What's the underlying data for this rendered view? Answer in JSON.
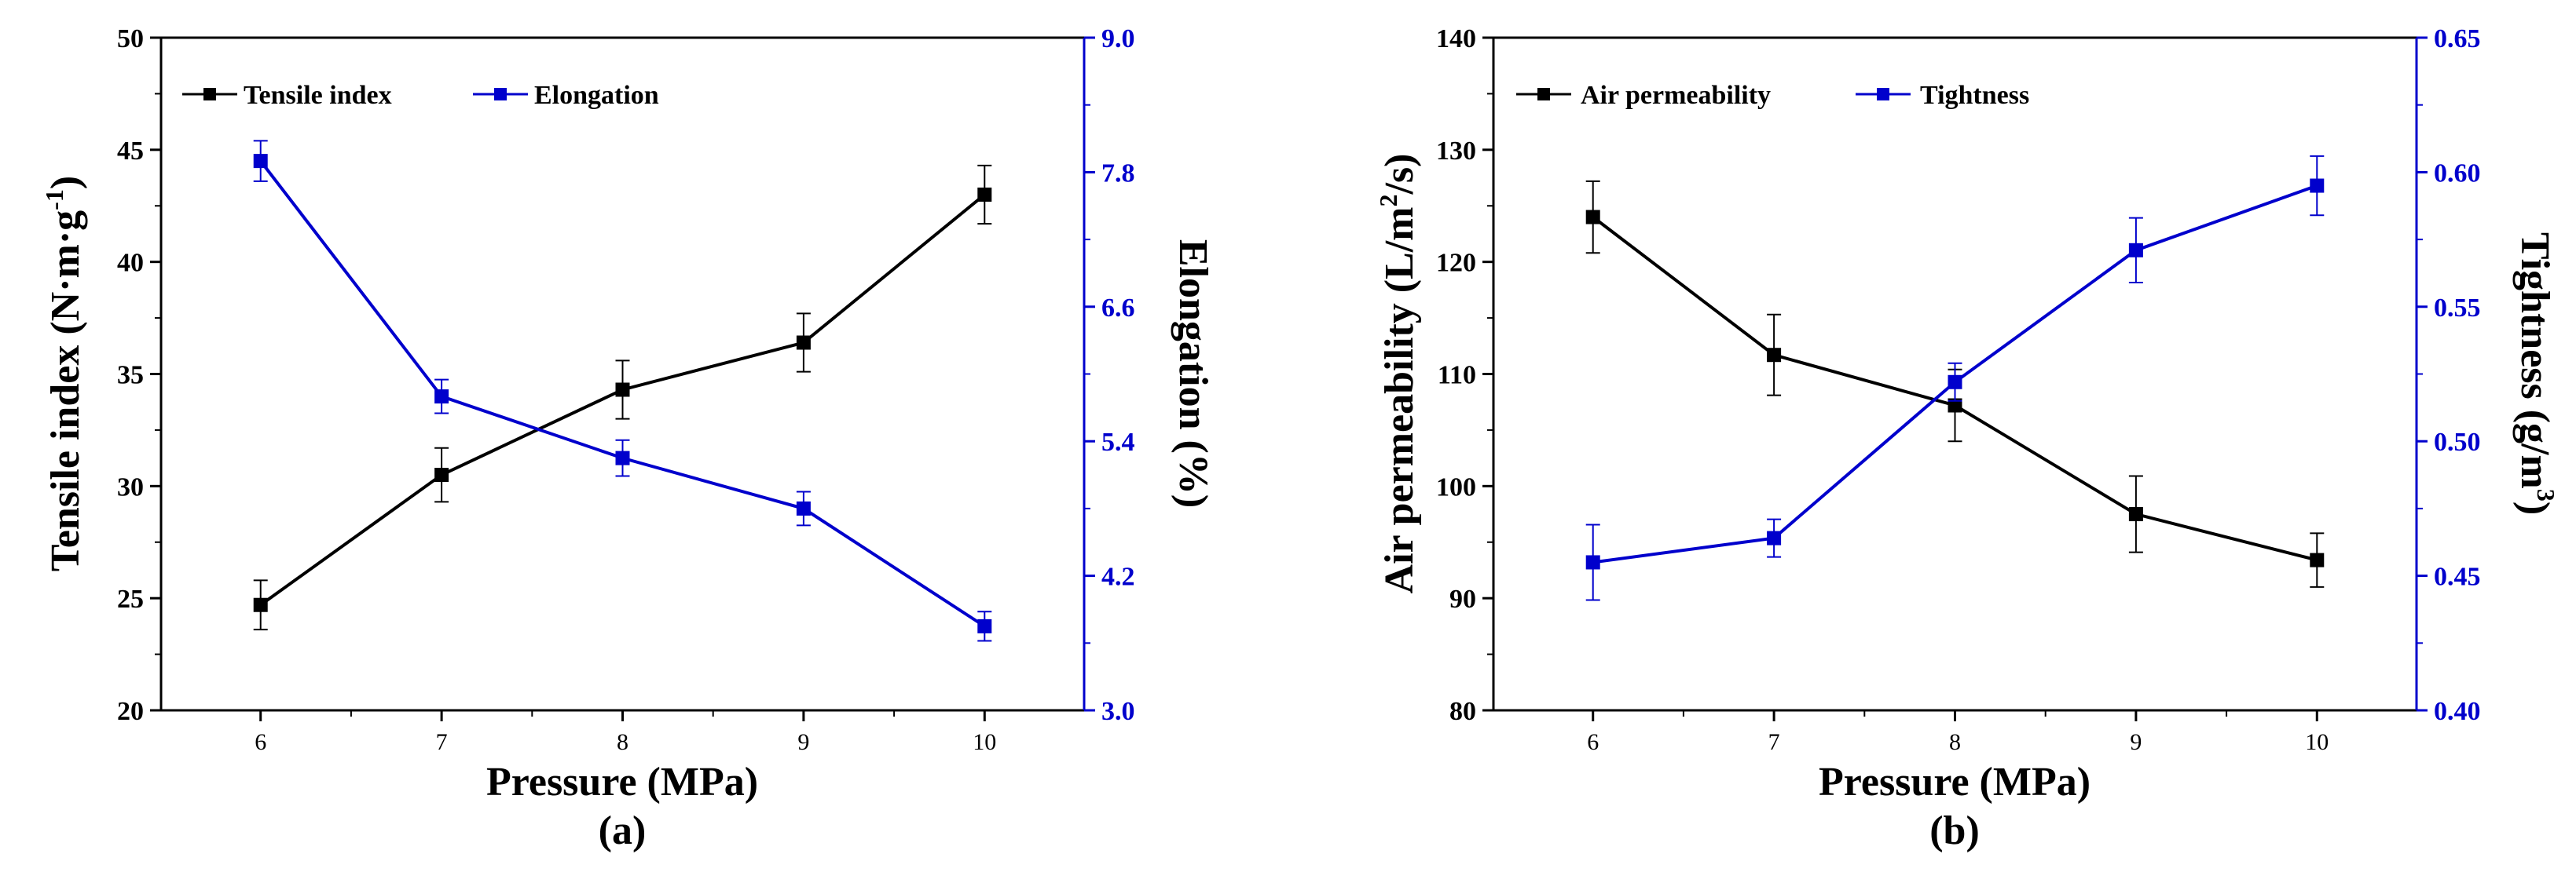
{
  "chart_data": [
    {
      "type": "line",
      "panel_label": "(a)",
      "xlabel": "Pressure (MPa)",
      "x": [
        6,
        7,
        8,
        9,
        10
      ],
      "xlim": [
        5.45,
        10.55
      ],
      "ylabel_left": {
        "main": "Tensile index (N·m·g",
        "sup": "-1",
        "tail": ")"
      },
      "ylim_left": [
        20,
        50
      ],
      "yticks_left": [
        20,
        25,
        30,
        35,
        40,
        45,
        50
      ],
      "ylabel_right": "Elongation (%)",
      "ylim_right": [
        3.0,
        9.0
      ],
      "yticks_right": [
        "3.0",
        "4.2",
        "5.4",
        "6.6",
        "7.8",
        "9.0"
      ],
      "series": [
        {
          "name": "Tensile index",
          "axis": "left",
          "color": "#000000",
          "values": [
            24.7,
            30.5,
            34.3,
            36.4,
            43.0
          ],
          "errors": [
            1.1,
            1.2,
            1.3,
            1.3,
            1.3
          ]
        },
        {
          "name": "Elongation",
          "axis": "right",
          "color": "#0000cc",
          "values": [
            7.9,
            5.8,
            5.25,
            4.8,
            3.75
          ],
          "errors": [
            0.18,
            0.15,
            0.16,
            0.15,
            0.13
          ]
        }
      ]
    },
    {
      "type": "line",
      "panel_label": "(b)",
      "xlabel": "Pressure (MPa)",
      "x": [
        6,
        7,
        8,
        9,
        10
      ],
      "xlim": [
        5.45,
        10.55
      ],
      "ylabel_left": {
        "main": "Air permeability (L/m",
        "sup": "2",
        "tail": "/s)"
      },
      "ylim_left": [
        80,
        140
      ],
      "yticks_left": [
        80,
        90,
        100,
        110,
        120,
        130,
        140
      ],
      "ylabel_right": {
        "main": "Tightness (g/m",
        "sup": "3",
        "tail": ")"
      },
      "ylim_right": [
        0.4,
        0.65
      ],
      "yticks_right": [
        "0.40",
        "0.45",
        "0.50",
        "0.55",
        "0.60",
        "0.65"
      ],
      "series": [
        {
          "name": "Air permeability",
          "axis": "left",
          "color": "#000000",
          "values": [
            124.0,
            111.7,
            107.2,
            97.5,
            93.4
          ],
          "errors": [
            3.2,
            3.6,
            3.2,
            3.4,
            2.4
          ]
        },
        {
          "name": "Tightness",
          "axis": "right",
          "color": "#0000cc",
          "values": [
            0.455,
            0.464,
            0.522,
            0.571,
            0.595
          ],
          "errors": [
            0.014,
            0.007,
            0.007,
            0.012,
            0.011
          ]
        }
      ]
    }
  ]
}
